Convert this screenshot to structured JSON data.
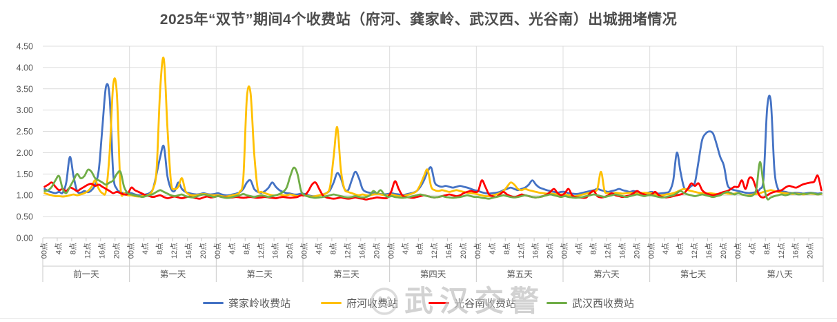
{
  "title": "2025年“双节”期间4个收费站（府河、龚家岭、武汉西、光谷南）出城拥堵情况",
  "watermark": {
    "text": "武汉交警",
    "logo": "traffic-police-badge"
  },
  "colors": {
    "grid": "#dcdcdc",
    "axis": "#c9c9c9",
    "tick_text": "#595959",
    "title_text": "#4d4d4d",
    "series_blue": "#4472C4",
    "series_yellow": "#FFC000",
    "series_red": "#FF0000",
    "series_green": "#70AD47"
  },
  "chart_data": {
    "type": "line",
    "title": "2025年“双节”期间4个收费站（府河、龚家岭、武汉西、光谷南）出城拥堵情况",
    "xlabel": "",
    "ylabel": "",
    "ylim": [
      0,
      4.5
    ],
    "y_step": 0.5,
    "y_ticks": [
      "0.00",
      "0.50",
      "1.00",
      "1.50",
      "2.00",
      "2.50",
      "3.00",
      "3.50",
      "4.00",
      "4.50"
    ],
    "grid": true,
    "smooth_lines": true,
    "legend_position": "bottom",
    "x_axis": {
      "hours_per_day": 24,
      "hour_ticks": [
        "00点",
        "4点",
        "8点",
        "12点",
        "16点",
        "20点"
      ],
      "day_groups": [
        "前一天",
        "第一天",
        "第二天",
        "第三天",
        "第四天",
        "第五天",
        "第六天",
        "第七天",
        "第八天"
      ]
    },
    "series": [
      {
        "name": "龚家岭收费站",
        "color": "#4472C4",
        "values": [
          1.15,
          1.1,
          1.07,
          1.05,
          1.08,
          1.06,
          1.3,
          1.9,
          1.45,
          1.1,
          1.06,
          1.1,
          1.07,
          1.12,
          1.25,
          1.6,
          2.6,
          3.55,
          3.3,
          1.5,
          1.15,
          1.08,
          1.05,
          1.05,
          1.05,
          1.02,
          1.0,
          1.0,
          1.02,
          1.05,
          1.15,
          1.5,
          1.9,
          2.15,
          1.45,
          1.15,
          1.1,
          1.3,
          1.15,
          1.08,
          1.05,
          1.03,
          1.02,
          1.03,
          1.05,
          1.03,
          1.02,
          1.03,
          1.05,
          1.02,
          1.0,
          1.0,
          1.02,
          1.04,
          1.07,
          1.15,
          1.3,
          1.35,
          1.15,
          1.08,
          1.06,
          1.1,
          1.18,
          1.3,
          1.2,
          1.12,
          1.08,
          1.05,
          1.04,
          1.02,
          1.02,
          1.04,
          1.03,
          1.0,
          0.98,
          0.98,
          1.0,
          1.02,
          1.05,
          1.12,
          1.3,
          1.52,
          1.4,
          1.15,
          1.12,
          1.35,
          1.55,
          1.4,
          1.15,
          1.08,
          1.06,
          1.05,
          1.04,
          1.03,
          1.02,
          1.03,
          1.05,
          1.03,
          1.02,
          1.0,
          1.02,
          1.04,
          1.06,
          1.1,
          1.2,
          1.35,
          1.55,
          1.65,
          1.3,
          1.22,
          1.2,
          1.22,
          1.2,
          1.18,
          1.2,
          1.22,
          1.2,
          1.18,
          1.15,
          1.12,
          1.1,
          1.07,
          1.05,
          1.04,
          1.05,
          1.06,
          1.08,
          1.12,
          1.15,
          1.18,
          1.15,
          1.12,
          1.15,
          1.18,
          1.25,
          1.35,
          1.25,
          1.18,
          1.15,
          1.12,
          1.1,
          1.08,
          1.06,
          1.08,
          1.08,
          1.05,
          1.04,
          1.03,
          1.04,
          1.06,
          1.08,
          1.1,
          1.12,
          1.15,
          1.12,
          1.1,
          1.08,
          1.1,
          1.12,
          1.15,
          1.12,
          1.1,
          1.08,
          1.1,
          1.08,
          1.06,
          1.05,
          1.06,
          1.08,
          1.05,
          1.04,
          1.05,
          1.06,
          1.1,
          1.35,
          2.0,
          1.55,
          1.18,
          1.15,
          1.22,
          1.3,
          1.8,
          2.3,
          2.45,
          2.5,
          2.45,
          2.2,
          1.9,
          1.7,
          1.25,
          1.15,
          1.12,
          1.1,
          1.08,
          1.06,
          1.05,
          1.06,
          1.08,
          1.15,
          1.4,
          3.05,
          3.2,
          1.6,
          1.15,
          1.1,
          1.08,
          1.06,
          1.05,
          1.06,
          1.05,
          1.04,
          1.05,
          1.06,
          1.05,
          1.04,
          1.05
        ]
      },
      {
        "name": "府河收费站",
        "color": "#FFC000",
        "values": [
          1.05,
          1.02,
          1.0,
          0.98,
          0.98,
          0.97,
          0.98,
          1.0,
          1.02,
          1.0,
          1.02,
          1.05,
          1.1,
          1.2,
          1.35,
          1.15,
          1.05,
          1.1,
          2.0,
          3.6,
          3.4,
          1.2,
          1.05,
          1.0,
          1.0,
          0.98,
          0.97,
          0.98,
          1.0,
          1.02,
          1.15,
          1.6,
          3.5,
          4.2,
          2.6,
          1.3,
          1.15,
          1.2,
          1.4,
          1.1,
          1.02,
          1.0,
          1.0,
          1.02,
          1.03,
          1.02,
          1.0,
          1.0,
          1.0,
          0.98,
          0.97,
          0.98,
          1.0,
          1.02,
          1.08,
          1.4,
          3.3,
          3.4,
          2.0,
          1.15,
          1.08,
          1.05,
          1.02,
          1.0,
          1.0,
          1.02,
          1.0,
          1.0,
          1.02,
          1.0,
          0.98,
          1.0,
          1.0,
          0.98,
          0.97,
          0.98,
          1.0,
          1.02,
          1.05,
          1.2,
          1.9,
          2.6,
          1.6,
          1.15,
          1.08,
          1.05,
          1.02,
          1.0,
          1.02,
          1.0,
          1.0,
          1.02,
          1.03,
          1.02,
          1.0,
          1.0,
          1.02,
          1.0,
          0.98,
          0.98,
          1.0,
          1.02,
          1.05,
          1.1,
          1.25,
          1.45,
          1.6,
          1.2,
          1.12,
          1.1,
          1.12,
          1.1,
          1.08,
          1.1,
          1.12,
          1.1,
          1.08,
          1.06,
          1.05,
          1.04,
          1.02,
          1.0,
          0.98,
          0.98,
          1.0,
          1.02,
          1.05,
          1.1,
          1.2,
          1.3,
          1.25,
          1.15,
          1.12,
          1.15,
          1.12,
          1.1,
          1.08,
          1.06,
          1.05,
          1.04,
          1.04,
          1.03,
          1.02,
          1.02,
          1.02,
          1.0,
          0.98,
          0.98,
          1.0,
          1.02,
          1.04,
          1.06,
          1.1,
          1.15,
          1.55,
          1.1,
          1.05,
          1.04,
          1.06,
          1.05,
          1.04,
          1.05,
          1.06,
          1.05,
          1.04,
          1.05,
          1.06,
          1.05,
          1.05,
          1.02,
          1.0,
          1.0,
          1.02,
          1.03,
          1.05,
          1.08,
          1.12,
          1.15,
          1.12,
          1.1,
          1.08,
          1.06,
          1.05,
          1.04,
          1.05,
          1.04,
          1.03,
          1.04,
          1.05,
          1.04,
          1.03,
          1.04,
          1.05,
          1.02,
          1.0,
          1.0,
          1.02,
          1.03,
          1.05,
          1.08,
          1.1,
          1.12,
          1.1,
          1.08,
          1.06,
          1.05,
          1.04,
          1.03,
          1.04,
          1.03,
          1.02,
          1.03,
          1.04,
          1.03,
          1.02,
          1.03
        ]
      },
      {
        "name": "光谷南收费站",
        "color": "#FF0000",
        "values": [
          1.2,
          1.25,
          1.3,
          1.2,
          1.12,
          1.15,
          1.1,
          1.18,
          1.15,
          1.1,
          1.15,
          1.2,
          1.25,
          1.27,
          1.22,
          1.25,
          1.2,
          1.15,
          1.1,
          1.05,
          1.08,
          1.05,
          1.02,
          1.03,
          1.18,
          1.12,
          1.08,
          1.04,
          1.0,
          0.98,
          0.96,
          0.98,
          1.0,
          0.96,
          0.93,
          0.95,
          0.97,
          0.95,
          0.93,
          0.95,
          0.97,
          0.95,
          0.93,
          0.92,
          0.95,
          0.97,
          0.95,
          0.96,
          0.98,
          0.96,
          0.95,
          0.94,
          0.95,
          0.96,
          0.95,
          0.94,
          0.95,
          0.96,
          0.95,
          0.94,
          0.95,
          0.96,
          0.95,
          0.94,
          0.93,
          0.95,
          0.96,
          0.95,
          0.94,
          0.95,
          0.96,
          1.0,
          1.0,
          1.1,
          1.25,
          1.3,
          1.15,
          1.0,
          0.95,
          0.93,
          0.92,
          0.93,
          0.95,
          0.93,
          0.92,
          0.93,
          0.95,
          0.93,
          0.92,
          0.9,
          0.92,
          0.93,
          0.95,
          0.94,
          0.93,
          0.95,
          1.1,
          1.33,
          1.15,
          1.0,
          0.96,
          0.95,
          0.94,
          0.96,
          0.98,
          1.0,
          0.98,
          0.96,
          0.95,
          0.96,
          0.98,
          1.0,
          1.02,
          1.0,
          0.98,
          1.0,
          1.05,
          1.08,
          1.1,
          1.08,
          1.1,
          1.35,
          1.2,
          1.02,
          0.98,
          0.96,
          1.02,
          1.08,
          1.02,
          0.98,
          0.96,
          0.98,
          1.02,
          1.0,
          0.98,
          0.96,
          0.95,
          0.96,
          0.98,
          1.02,
          1.08,
          1.15,
          1.05,
          1.0,
          1.05,
          1.15,
          1.0,
          0.96,
          0.95,
          0.94,
          0.95,
          1.05,
          1.1,
          0.98,
          0.95,
          0.96,
          1.0,
          1.05,
          1.0,
          0.98,
          0.96,
          0.98,
          1.0,
          1.05,
          1.1,
          1.05,
          1.02,
          1.0,
          1.02,
          1.08,
          1.0,
          0.96,
          0.95,
          0.96,
          0.98,
          1.0,
          1.02,
          1.05,
          1.15,
          1.28,
          1.22,
          1.28,
          1.12,
          1.05,
          1.02,
          1.0,
          1.02,
          1.05,
          1.08,
          1.1,
          1.15,
          1.2,
          1.2,
          1.35,
          1.15,
          1.4,
          1.38,
          1.15,
          0.98,
          0.95,
          1.0,
          1.05,
          1.08,
          1.1,
          1.12,
          1.18,
          1.22,
          1.2,
          1.18,
          1.22,
          1.26,
          1.28,
          1.3,
          1.32,
          1.46,
          1.12
        ]
      },
      {
        "name": "武汉西收费站",
        "color": "#70AD47",
        "values": [
          1.1,
          1.12,
          1.2,
          1.35,
          1.45,
          1.15,
          1.05,
          1.2,
          1.35,
          1.5,
          1.4,
          1.45,
          1.6,
          1.55,
          1.4,
          1.35,
          1.3,
          1.25,
          1.3,
          1.35,
          1.5,
          1.55,
          1.2,
          1.05,
          1.02,
          1.0,
          0.98,
          0.96,
          0.98,
          1.0,
          1.03,
          1.08,
          1.12,
          1.08,
          1.04,
          1.0,
          0.98,
          1.0,
          1.02,
          0.98,
          0.96,
          0.95,
          0.97,
          1.0,
          1.02,
          1.0,
          0.98,
          0.96,
          0.98,
          0.96,
          0.94,
          0.94,
          0.96,
          0.98,
          1.0,
          1.03,
          1.0,
          0.98,
          0.96,
          0.98,
          1.0,
          0.98,
          0.96,
          0.98,
          1.0,
          1.03,
          1.08,
          1.18,
          1.45,
          1.65,
          1.5,
          1.1,
          1.0,
          0.97,
          0.95,
          0.94,
          0.95,
          0.96,
          0.98,
          1.0,
          1.02,
          1.0,
          0.98,
          0.96,
          0.95,
          0.96,
          0.98,
          0.96,
          0.95,
          0.96,
          1.0,
          1.1,
          1.05,
          1.12,
          1.02,
          0.96,
          0.98,
          0.96,
          0.95,
          0.94,
          0.95,
          0.96,
          0.98,
          1.0,
          1.02,
          1.0,
          0.98,
          0.96,
          0.95,
          0.96,
          0.98,
          0.96,
          0.95,
          0.94,
          0.95,
          0.96,
          0.98,
          1.0,
          0.98,
          0.96,
          0.96,
          0.94,
          0.93,
          0.92,
          0.94,
          0.96,
          0.98,
          1.0,
          0.98,
          0.96,
          0.95,
          0.96,
          0.98,
          1.0,
          0.98,
          0.96,
          0.95,
          0.96,
          0.98,
          1.0,
          1.02,
          1.0,
          0.98,
          0.96,
          0.98,
          0.96,
          0.95,
          0.94,
          0.95,
          0.96,
          0.98,
          1.0,
          1.02,
          1.0,
          0.98,
          0.96,
          0.98,
          1.0,
          1.02,
          1.0,
          0.98,
          0.96,
          0.98,
          1.0,
          1.02,
          1.0,
          0.98,
          1.0,
          1.0,
          0.98,
          0.96,
          0.95,
          0.96,
          0.98,
          1.0,
          1.05,
          1.1,
          1.05,
          1.02,
          1.0,
          0.98,
          1.0,
          1.02,
          1.0,
          0.98,
          0.96,
          0.98,
          1.0,
          1.05,
          1.08,
          1.05,
          1.02,
          1.05,
          1.02,
          1.0,
          0.98,
          1.0,
          1.15,
          1.78,
          1.25,
          0.92,
          0.95,
          0.98,
          1.0,
          1.02,
          1.0,
          1.02,
          1.05,
          1.03,
          1.02,
          1.04,
          1.03,
          1.05,
          1.04,
          1.02,
          1.04
        ]
      }
    ]
  }
}
